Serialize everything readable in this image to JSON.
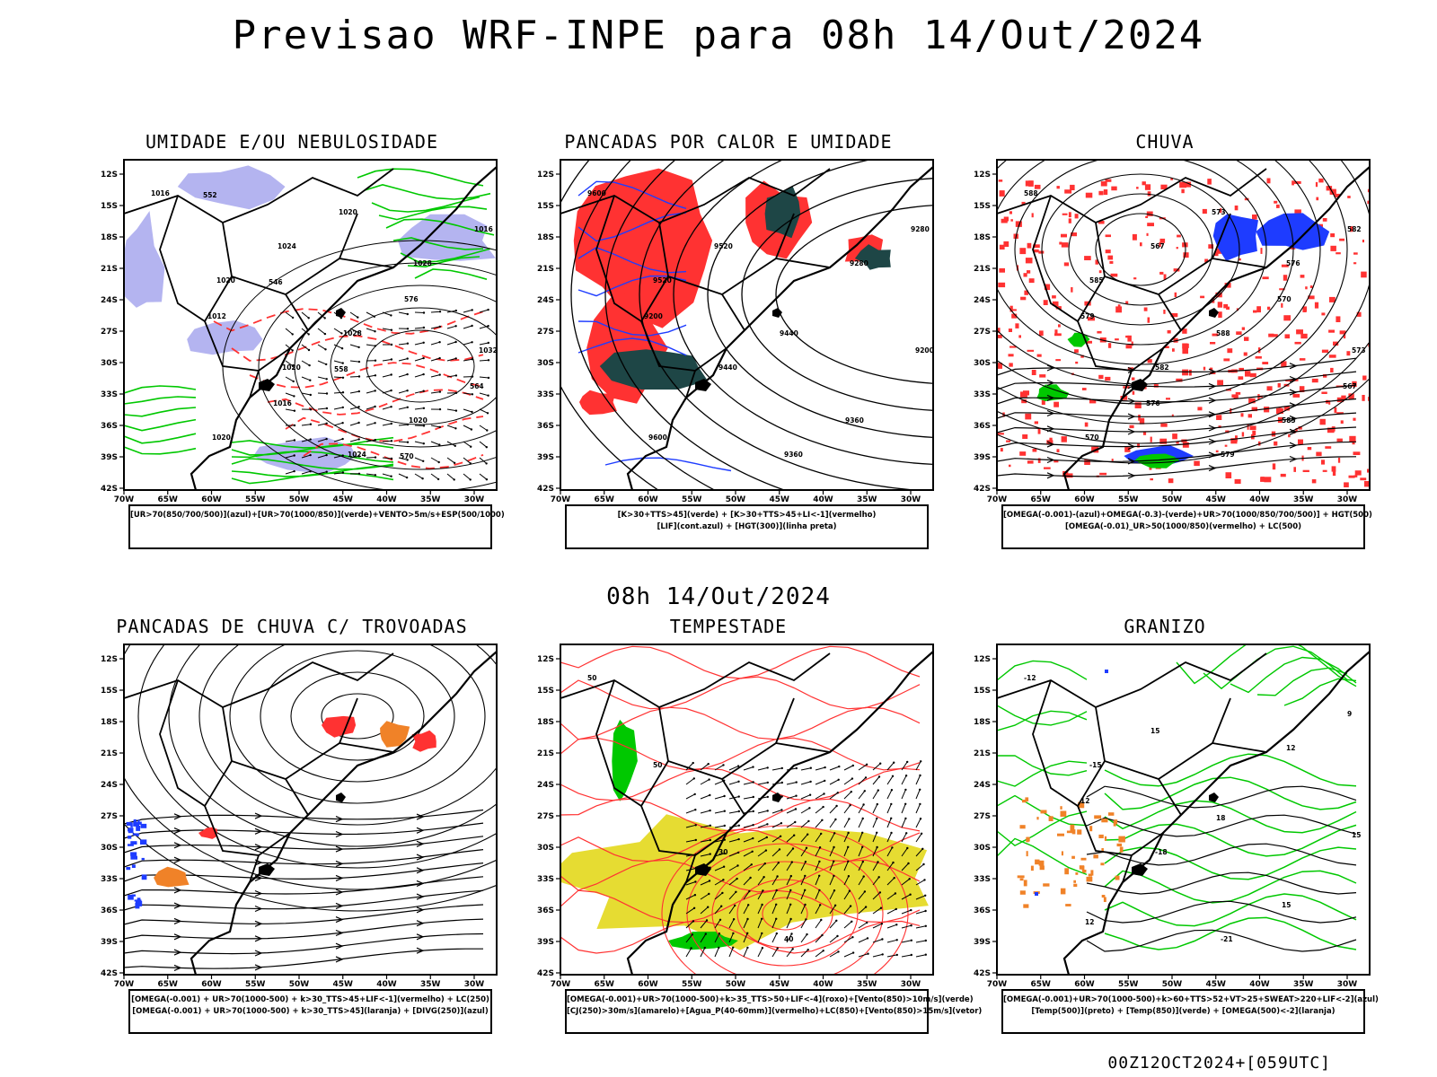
{
  "title": "Previsao WRF-INPE  para 08h 14/Out/2024",
  "mid_title": "08h 14/Out/2024",
  "footer": "00Z12OCT2024+[059UTC]",
  "lat_labels": [
    "12S",
    "15S",
    "18S",
    "21S",
    "24S",
    "27S",
    "30S",
    "33S",
    "36S",
    "39S",
    "42S"
  ],
  "lon_labels": [
    "70W",
    "65W",
    "60W",
    "55W",
    "50W",
    "45W",
    "40W",
    "35W",
    "30W"
  ],
  "colors": {
    "blue_shade": "#b4b4f0",
    "green": "#00c800",
    "red": "#ff3232",
    "blue": "#1e3cff",
    "dark_teal": "#1e4646",
    "orange": "#f08228",
    "yellow": "#e6dc32",
    "black": "#000000"
  },
  "panels": [
    {
      "id": "umidade",
      "title": "UMIDADE E/OU NEBULOSIDADE",
      "legend": [
        "[UR>70(850/700/500)](azul)+[UR>70(1000/850)](verde)+VENTO>5m/s+ESP(500/1000)"
      ],
      "contour_labels": [
        "1016",
        "1020",
        "1020",
        "1024",
        "1028",
        "1032",
        "1020",
        "1024",
        "1028",
        "1020",
        "1016",
        "1012",
        "1016",
        "1020",
        "576",
        "564",
        "552",
        "546",
        "558",
        "570"
      ]
    },
    {
      "id": "pancadas-calor",
      "title": "PANCADAS POR CALOR E UMIDADE",
      "legend": [
        "[K>30+TTS>45](verde) + [K>30+TTS>45+LI<-1](vermelho)",
        "[LIF](cont.azul) + [HGT(300)](linha preta)"
      ],
      "contour_labels": [
        "9600",
        "9520",
        "9440",
        "9360",
        "9280",
        "9200",
        "9600",
        "9520",
        "9440",
        "9360",
        "9280",
        "9200"
      ]
    },
    {
      "id": "chuva",
      "title": "CHUVA",
      "legend": [
        "[OMEGA(-0.001)-(azul)+OMEGA(-0.3)-(verde)+UR>70(1000/850/700/500)] + HGT(500)",
        "[OMEGA(-0.01)_UR>50(1000/850)(vermelho) + LC(500)"
      ],
      "contour_labels": [
        "588",
        "585",
        "582",
        "579",
        "576",
        "573",
        "570",
        "567",
        "588",
        "585",
        "582",
        "579",
        "576",
        "573",
        "570",
        "567"
      ]
    },
    {
      "id": "trovoadas",
      "title": "PANCADAS DE CHUVA C/ TROVOADAS",
      "legend": [
        "[OMEGA(-0.001) + UR>70(1000-500) + k>30_TTS>45+LIF<-1](vermelho) + LC(250)",
        "[OMEGA(-0.001) + UR>70(1000-500) + k>30_TTS>45](laranja) + [DIVG(250)](azul)"
      ],
      "contour_labels": []
    },
    {
      "id": "tempestade",
      "title": "TEMPESTADE",
      "legend": [
        "[OMEGA(-0.001)+UR>70(1000-500)+k>35_TTS>50+LIF<-4](roxo)+[Vento(850)>10m/s](verde)",
        "[CJ(250)>30m/s](amarelo)+[Agua_P(40-60mm)](vermelho)+LC(850)+[Vento(850)>15m/s](vetor)"
      ],
      "contour_labels": [
        "50",
        "50",
        "30",
        "40"
      ]
    },
    {
      "id": "granizo",
      "title": "GRANIZO",
      "legend": [
        "[OMEGA(-0.001)+UR>70(1000-500)+k>60+TTS>52+VT>25+SWEAT>220+LIF<-2](azul)",
        "[Temp(500)](preto) + [Temp(850)](verde) + [OMEGA(500)<-2](laranja)"
      ],
      "contour_labels": [
        "-12",
        "-15",
        "-18",
        "-21",
        "12",
        "15",
        "12",
        "15",
        "18",
        "15",
        "9",
        "12"
      ]
    }
  ]
}
